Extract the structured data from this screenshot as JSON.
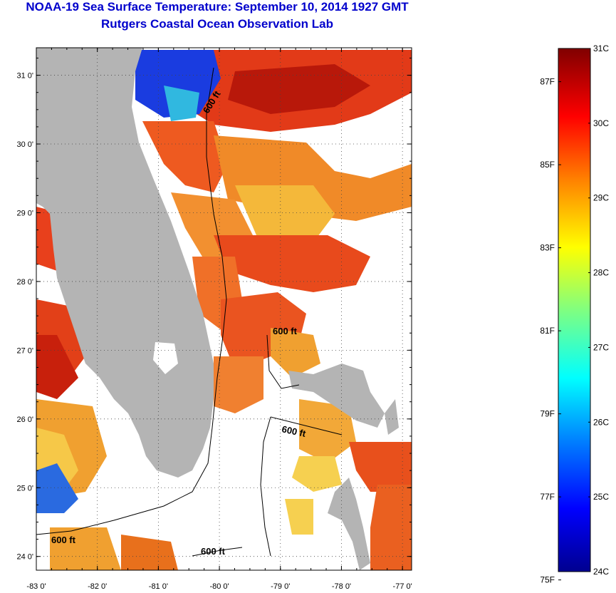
{
  "header": {
    "title": "NOAA-19 Sea Surface Temperature:  September 10, 2014 1927 GMT",
    "subtitle": "Rutgers Coastal Ocean Observation Lab"
  },
  "map": {
    "lat_range": [
      23.8,
      31.4
    ],
    "lon_range": [
      -83.0,
      -76.85
    ],
    "lat_ticks": [
      {
        "value": 24,
        "label": "24 0'"
      },
      {
        "value": 25,
        "label": "25 0'"
      },
      {
        "value": 26,
        "label": "26 0'"
      },
      {
        "value": 27,
        "label": "27 0'"
      },
      {
        "value": 28,
        "label": "28 0'"
      },
      {
        "value": 29,
        "label": "29 0'"
      },
      {
        "value": 30,
        "label": "30 0'"
      },
      {
        "value": 31,
        "label": "31 0'"
      }
    ],
    "lon_ticks": [
      {
        "value": -83,
        "label": "-83 0'"
      },
      {
        "value": -82,
        "label": "-82 0'"
      },
      {
        "value": -81,
        "label": "-81 0'"
      },
      {
        "value": -80,
        "label": "-80 0'"
      },
      {
        "value": -79,
        "label": "-79 0'"
      },
      {
        "value": -78,
        "label": "-78 0'"
      },
      {
        "value": -77,
        "label": "-77 0'"
      }
    ],
    "contour_labels": [
      "600 ft",
      "600 ft",
      "600 ft",
      "600 ft",
      "600 ft"
    ],
    "colors": {
      "land": "#b4b4b4",
      "cloud": "#ffffff",
      "warm": "#e8401c",
      "cool": "#1040d0"
    }
  },
  "colorbar": {
    "celsius_range": [
      24,
      31
    ],
    "celsius_labels": [
      "31C",
      "30C",
      "29C",
      "28C",
      "27C",
      "26C",
      "25C",
      "24C"
    ],
    "fahrenheit_labels": [
      {
        "value": 87,
        "label": "87F"
      },
      {
        "value": 85,
        "label": "85F"
      },
      {
        "value": 83,
        "label": "83F"
      },
      {
        "value": 81,
        "label": "81F"
      },
      {
        "value": 79,
        "label": "79F"
      },
      {
        "value": 77,
        "label": "77F"
      },
      {
        "value": 75,
        "label": "75F"
      }
    ]
  }
}
